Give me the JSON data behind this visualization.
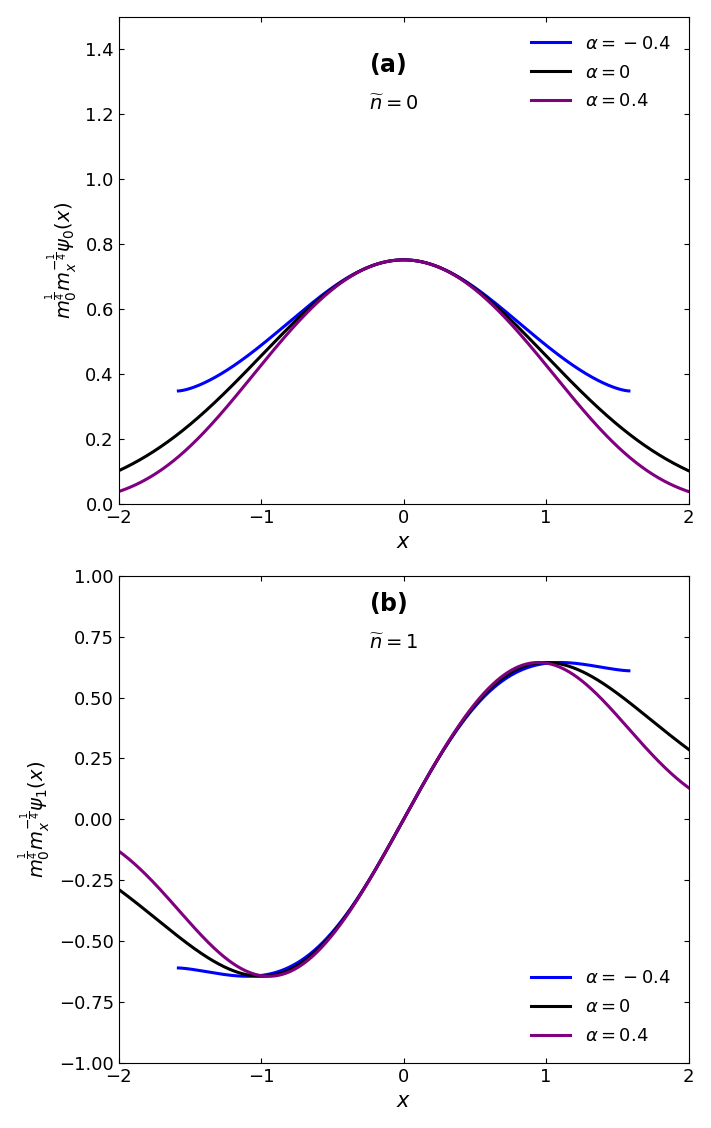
{
  "alphas": [
    -0.4,
    0.0,
    0.4
  ],
  "colors": [
    "blue",
    "black",
    "#800080"
  ],
  "xlim": [
    -2,
    2
  ],
  "ylim_a": [
    0,
    1.5
  ],
  "ylim_b": [
    -1,
    1
  ],
  "linewidth": 2.2,
  "figsize": [
    7.11,
    11.28
  ],
  "dpi": 100,
  "legend_labels": [
    "$\\alpha = -0.4$",
    "$\\alpha = 0$",
    "$\\alpha = 0.4$"
  ],
  "label_a": "(a)",
  "label_b": "(b)",
  "subtitle_a": "$\\widetilde{n} = 0$",
  "subtitle_b": "$\\widetilde{n} = 1$",
  "ylabel_a": "$m_0^{\\frac{1}{4}} m_x^{-\\frac{1}{4}} \\psi_0(x)$",
  "ylabel_b": "$m_0^{\\frac{1}{4}} m_x^{-\\frac{1}{4}} \\psi_1(x)$",
  "xlabel": "$x$",
  "xticks": [
    -2,
    -1,
    0,
    1,
    2
  ]
}
